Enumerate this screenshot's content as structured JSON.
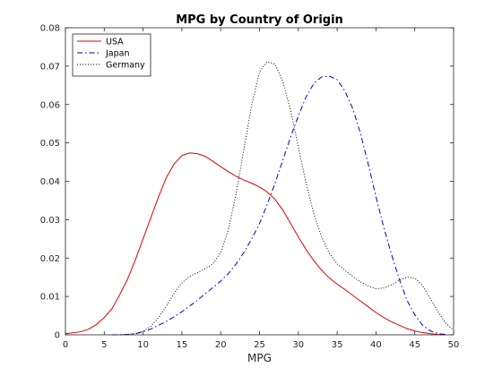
{
  "chart_data": {
    "type": "line",
    "title": "MPG by Country of Origin",
    "xlabel": "MPG",
    "ylabel": "",
    "xlim": [
      0,
      50
    ],
    "ylim": [
      0,
      0.08
    ],
    "xticks": [
      0,
      5,
      10,
      15,
      20,
      25,
      30,
      35,
      40,
      45,
      50
    ],
    "yticks": [
      0,
      0.01,
      0.02,
      0.03,
      0.04,
      0.05,
      0.06,
      0.07,
      0.08
    ],
    "grid": false,
    "legend_position": "top-left",
    "series": [
      {
        "name": "USA",
        "color": "#e00000",
        "dash": "solid",
        "x": [
          0,
          2,
          3,
          4,
          5,
          6,
          7,
          8,
          9,
          10,
          11,
          12,
          13,
          14,
          15,
          16,
          17,
          18,
          19,
          20,
          21,
          22,
          23,
          24,
          25,
          26,
          27,
          28,
          29,
          30,
          31,
          32,
          33,
          34,
          35,
          36,
          37,
          38,
          39,
          40,
          41,
          42,
          43,
          44,
          45,
          46,
          47,
          48,
          49
        ],
        "y": [
          0.0003,
          0.0008,
          0.0015,
          0.0027,
          0.0045,
          0.0068,
          0.0105,
          0.0145,
          0.0195,
          0.025,
          0.0305,
          0.036,
          0.041,
          0.0445,
          0.0467,
          0.0474,
          0.0472,
          0.0465,
          0.0452,
          0.0438,
          0.0425,
          0.0413,
          0.0403,
          0.0395,
          0.0385,
          0.0372,
          0.0353,
          0.0325,
          0.029,
          0.0255,
          0.0222,
          0.0193,
          0.0168,
          0.0148,
          0.0132,
          0.0118,
          0.0103,
          0.0088,
          0.0073,
          0.0058,
          0.0045,
          0.0034,
          0.0025,
          0.0016,
          0.001,
          0.0006,
          0.0003,
          0.0001,
          0.0
        ]
      },
      {
        "name": "Japan",
        "color": "#0000cc",
        "dash": "dashdot",
        "x": [
          6,
          8,
          9,
          10,
          11,
          12,
          13,
          14,
          15,
          16,
          17,
          18,
          19,
          20,
          21,
          22,
          23,
          24,
          25,
          26,
          27,
          28,
          29,
          30,
          31,
          32,
          33,
          34,
          35,
          36,
          37,
          38,
          39,
          40,
          41,
          42,
          43,
          44,
          45,
          46,
          47,
          48,
          49
        ],
        "y": [
          0.0,
          0.0001,
          0.0003,
          0.0008,
          0.0015,
          0.0025,
          0.0035,
          0.0047,
          0.006,
          0.0075,
          0.009,
          0.0107,
          0.0123,
          0.014,
          0.016,
          0.0185,
          0.0215,
          0.025,
          0.029,
          0.034,
          0.0395,
          0.0455,
          0.0515,
          0.057,
          0.062,
          0.0655,
          0.0672,
          0.0674,
          0.0665,
          0.0635,
          0.059,
          0.0525,
          0.0445,
          0.036,
          0.028,
          0.021,
          0.0145,
          0.009,
          0.0052,
          0.0025,
          0.001,
          0.0003,
          0.0001
        ]
      },
      {
        "name": "Germany",
        "color": "#000000",
        "dash": "dotted",
        "x": [
          7,
          9,
          10,
          11,
          12,
          13,
          14,
          15,
          16,
          17,
          18,
          19,
          20,
          21,
          22,
          23,
          24,
          25,
          26,
          27,
          28,
          29,
          30,
          31,
          32,
          33,
          34,
          35,
          36,
          37,
          38,
          39,
          40,
          41,
          42,
          43,
          44,
          45,
          46,
          47,
          48,
          49,
          50
        ],
        "y": [
          0.0,
          0.0003,
          0.0009,
          0.0022,
          0.0045,
          0.0075,
          0.0108,
          0.0135,
          0.0152,
          0.0162,
          0.0172,
          0.0185,
          0.0215,
          0.0275,
          0.037,
          0.0485,
          0.06,
          0.0685,
          0.0712,
          0.0705,
          0.066,
          0.0585,
          0.049,
          0.0395,
          0.0315,
          0.0255,
          0.0212,
          0.0185,
          0.0168,
          0.0152,
          0.0138,
          0.0127,
          0.012,
          0.0122,
          0.013,
          0.0142,
          0.015,
          0.0148,
          0.0128,
          0.0095,
          0.006,
          0.003,
          0.0012
        ]
      }
    ]
  }
}
